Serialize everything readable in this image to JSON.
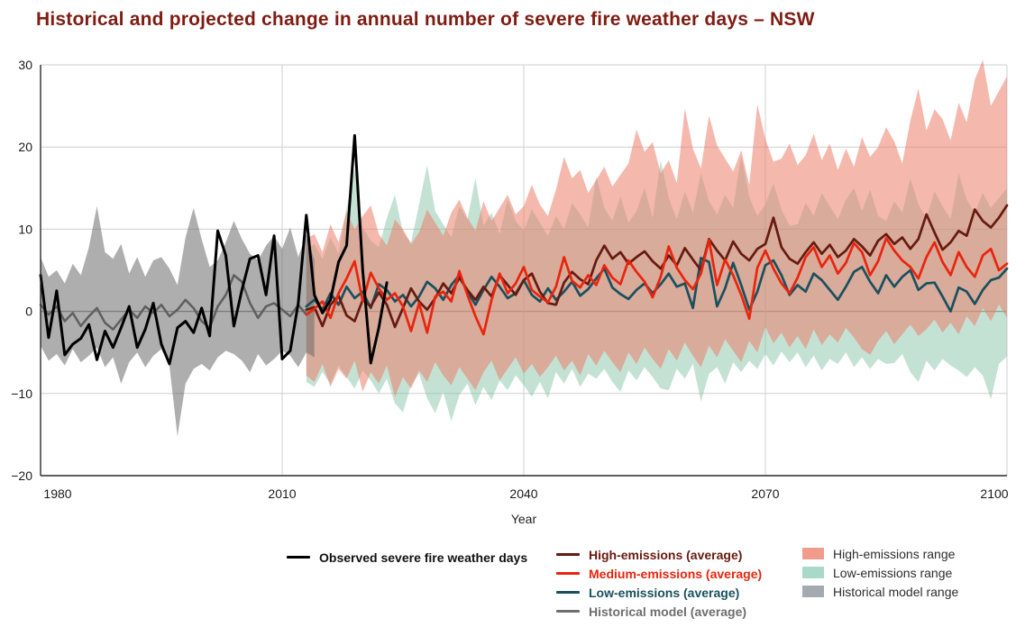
{
  "title": "Historical and projected change in annual number of severe fire weather days – NSW",
  "legend": {
    "observed": {
      "label": "Observed severe fire weather days",
      "color": "#000000"
    },
    "averages": [
      {
        "label": "High-emissions (average)",
        "color": "#661a10"
      },
      {
        "label": "Medium-emissions (average)",
        "color": "#e8250e"
      },
      {
        "label": "Low-emissions (average)",
        "color": "#1a505e"
      },
      {
        "label": "Historical model (average)",
        "color": "#6e6e6e"
      }
    ],
    "ranges": [
      {
        "label": "High-emissions range",
        "color": "#ef9c8d"
      },
      {
        "label": "Low-emissions range",
        "color": "#a9d9c9"
      },
      {
        "label": "Historical model range",
        "color": "#a4abb0"
      }
    ]
  },
  "chart_data": {
    "type": "line",
    "title": "Historical and projected change in annual number of severe fire weather days – NSW",
    "xlabel": "Year",
    "ylabel": "",
    "xlim": [
      1980,
      2100
    ],
    "ylim": [
      -20,
      30
    ],
    "x_ticks": [
      1980,
      2010,
      2040,
      2070,
      2100
    ],
    "y_ticks": [
      -20,
      -10,
      0,
      10,
      20,
      30
    ],
    "grid": true,
    "legend_position": "bottom",
    "series": [
      {
        "name": "Low-emissions range",
        "kind": "band",
        "start_year": 2013,
        "color": "#7dbea0",
        "opacity": 0.45,
        "upper": [
          7.6,
          8.2,
          6.4,
          9.0,
          7.0,
          12.6,
          17.4,
          10.2,
          8.6,
          7.8,
          11.4,
          14.2,
          9.6,
          8.4,
          13.0,
          17.8,
          12.2,
          10.6,
          9.0,
          12.8,
          11.2,
          16.2,
          10.4,
          12.0,
          9.4,
          13.6,
          11.0,
          9.8,
          12.4,
          10.8,
          9.2,
          11.6,
          10.0,
          13.2,
          11.8,
          10.2,
          16.4,
          12.6,
          11.0,
          14.0,
          10.8,
          12.2,
          15.0,
          11.4,
          18.4,
          13.8,
          11.2,
          14.6,
          12.0,
          16.8,
          13.4,
          11.8,
          14.2,
          12.6,
          19.0,
          13.9,
          11.6,
          13.0,
          15.6,
          12.4,
          10.4,
          10.6,
          13.2,
          11.6,
          14.4,
          12.8,
          11.2,
          13.6,
          15.0,
          12.2,
          14.8,
          11.6,
          11.0,
          13.4,
          12.0,
          16.2,
          13.0,
          11.4,
          14.6,
          12.8,
          11.2,
          16.8,
          13.6,
          12.0,
          14.4,
          12.6,
          13.8,
          15.0
        ],
        "lower": [
          -8.6,
          -9.2,
          -7.4,
          -8.8,
          -6.6,
          -8.0,
          -9.4,
          -7.2,
          -8.4,
          -10.0,
          -8.2,
          -11.2,
          -12.3,
          -9.0,
          -7.6,
          -10.6,
          -12.4,
          -9.8,
          -13.4,
          -10.2,
          -8.8,
          -11.4,
          -9.2,
          -10.8,
          -8.4,
          -9.6,
          -7.8,
          -9.0,
          -10.4,
          -8.6,
          -10.6,
          -7.4,
          -8.8,
          -7.0,
          -9.2,
          -7.6,
          -8.2,
          -7.0,
          -8.6,
          -9.8,
          -7.2,
          -8.4,
          -6.8,
          -8.0,
          -9.4,
          -9.6,
          -7.0,
          -8.2,
          -6.4,
          -11.0,
          -7.6,
          -6.8,
          -8.8,
          -6.2,
          -7.4,
          -6.0,
          -7.0,
          -5.2,
          -6.6,
          -4.9,
          -6.2,
          -5.0,
          -6.8,
          -5.4,
          -7.2,
          -5.8,
          -6.4,
          -5.0,
          -6.8,
          -5.6,
          -7.0,
          -5.8,
          -6.4,
          -6.3,
          -5.2,
          -7.4,
          -8.6,
          -6.0,
          -7.2,
          -5.8,
          -6.6,
          -7.2,
          -8.0,
          -6.8,
          -7.8,
          -10.7,
          -6.4,
          -5.5
        ]
      },
      {
        "name": "High-emissions range",
        "kind": "band",
        "start_year": 2013,
        "color": "#eb7d69",
        "opacity": 0.55,
        "upper": [
          8.8,
          9.4,
          7.2,
          10.6,
          8.4,
          12.2,
          10.0,
          11.6,
          12.9,
          9.4,
          8.0,
          11.2,
          10.0,
          8.2,
          9.6,
          12.4,
          10.8,
          9.2,
          12.0,
          13.6,
          11.4,
          9.8,
          13.4,
          11.0,
          12.6,
          14.2,
          11.8,
          12.8,
          15.4,
          13.0,
          11.6,
          14.8,
          18.8,
          16.2,
          17.2,
          14.4,
          16.0,
          17.6,
          15.2,
          16.6,
          18.0,
          22.1,
          19.4,
          20.6,
          16.8,
          18.4,
          15.6,
          24.7,
          19.8,
          17.4,
          23.8,
          20.2,
          18.6,
          17.0,
          19.6,
          15.4,
          25.2,
          21.0,
          18.2,
          18.6,
          20.4,
          17.8,
          19.0,
          21.6,
          18.4,
          20.4,
          17.2,
          19.8,
          17.6,
          21.2,
          18.8,
          20.0,
          22.4,
          20.7,
          18.0,
          23.2,
          27.1,
          22.0,
          24.6,
          23.4,
          20.8,
          25.4,
          23.0,
          28.2,
          30.6,
          25.0,
          26.8,
          28.6
        ],
        "lower": [
          -7.8,
          -8.6,
          -6.4,
          -9.2,
          -7.0,
          -8.2,
          -6.0,
          -9.8,
          -7.4,
          -8.8,
          -6.6,
          -10.4,
          -8.0,
          -9.4,
          -7.2,
          -8.6,
          -6.2,
          -7.8,
          -9.0,
          -6.8,
          -8.2,
          -9.6,
          -7.4,
          -6.0,
          -8.4,
          -7.0,
          -5.6,
          -7.6,
          -6.4,
          -8.0,
          -6.8,
          -5.4,
          -7.2,
          -6.0,
          -7.8,
          -5.2,
          -6.6,
          -4.8,
          -6.2,
          -7.4,
          -5.0,
          -6.4,
          -4.4,
          -5.8,
          -7.0,
          -4.6,
          -6.0,
          -3.8,
          -5.4,
          -6.8,
          -4.2,
          -5.6,
          -3.4,
          -4.8,
          -6.2,
          -3.6,
          -5.0,
          -1.9,
          -3.9,
          -2.6,
          -4.4,
          -3.0,
          -4.6,
          -2.2,
          -4.1,
          -2.8,
          -3.8,
          -2.0,
          -3.2,
          -4.6,
          -5.3,
          -3.6,
          -2.4,
          -4.0,
          -2.8,
          -1.6,
          -3.0,
          -2.2,
          -1.0,
          -2.6,
          -1.4,
          -2.8,
          -0.6,
          -1.8,
          0.4,
          -1.2,
          0.8,
          -0.8
        ]
      },
      {
        "name": "Historical model range",
        "kind": "band",
        "start_year": 1980,
        "color": "#6b6b6b",
        "opacity": 0.55,
        "upper": [
          6.6,
          4.2,
          5.0,
          3.4,
          5.8,
          4.4,
          7.8,
          12.8,
          7.2,
          6.4,
          8.2,
          4.6,
          6.6,
          4.2,
          6.2,
          6.6,
          5.2,
          3.2,
          9.0,
          12.6,
          8.8,
          5.4,
          6.2,
          8.4,
          11.0,
          8.8,
          7.0,
          6.2,
          8.0,
          9.2,
          7.6,
          10.2,
          6.6,
          9.4,
          6.2
        ],
        "lower": [
          -4.2,
          -6.0,
          -5.2,
          -6.6,
          -4.6,
          -6.2,
          -5.4,
          -4.4,
          -6.8,
          -5.6,
          -8.8,
          -6.2,
          -5.0,
          -6.8,
          -5.4,
          -4.6,
          -6.6,
          -15.2,
          -8.8,
          -7.0,
          -6.4,
          -7.2,
          -5.6,
          -4.8,
          -5.2,
          -6.0,
          -7.4,
          -5.2,
          -6.6,
          -5.8,
          -4.8,
          -5.4,
          -6.8,
          -5.0,
          -5.6
        ]
      },
      {
        "name": "Historical model (average)",
        "kind": "line",
        "start_year": 1980,
        "color": "#5f5f5f",
        "width": 2.5,
        "values": [
          0.8,
          -0.4,
          0.6,
          -1.2,
          -0.2,
          -1.8,
          -0.6,
          0.4,
          -1.4,
          -2.2,
          -1.0,
          0.2,
          -0.8,
          0.6,
          -0.2,
          0.8,
          -0.6,
          0.2,
          1.4,
          0.4,
          -1.2,
          -2.0,
          0.6,
          2.0,
          4.4,
          3.6,
          1.0,
          -0.8,
          0.6,
          1.0,
          0.2,
          -0.6,
          0.8,
          -0.4,
          0.3
        ]
      },
      {
        "name": "Low-emissions (average)",
        "kind": "line",
        "start_year": 2013,
        "color": "#1a505e",
        "width": 2.7,
        "values": [
          0.6,
          1.4,
          0.2,
          2.2,
          0.8,
          3.0,
          1.6,
          2.4,
          0.4,
          3.3,
          2.6,
          1.2,
          2.0,
          0.6,
          1.8,
          3.6,
          2.8,
          1.4,
          3.2,
          4.4,
          2.4,
          0.8,
          2.6,
          4.2,
          3.0,
          1.6,
          2.2,
          3.8,
          2.0,
          1.2,
          2.8,
          1.4,
          2.4,
          3.6,
          1.9,
          2.7,
          4.0,
          5.2,
          2.9,
          2.1,
          1.5,
          2.6,
          3.4,
          2.2,
          3.3,
          4.6,
          3.0,
          3.4,
          0.4,
          6.5,
          6.0,
          0.6,
          2.8,
          5.9,
          3.2,
          0.2,
          2.4,
          5.6,
          6.2,
          4.4,
          2.0,
          3.2,
          2.4,
          4.6,
          3.8,
          2.6,
          1.4,
          3.0,
          4.8,
          5.4,
          3.6,
          2.2,
          4.4,
          3.0,
          4.2,
          5.0,
          2.6,
          3.4,
          3.5,
          1.8,
          0.0,
          2.9,
          2.4,
          0.9,
          2.6,
          3.8,
          4.1,
          5.2
        ]
      },
      {
        "name": "High-emissions (average)",
        "kind": "line",
        "start_year": 2013,
        "color": "#661a10",
        "width": 2.7,
        "values": [
          0.2,
          0.5,
          -1.8,
          0.8,
          1.9,
          -0.5,
          -1.2,
          1.4,
          0.6,
          2.3,
          0.8,
          -1.9,
          0.4,
          2.8,
          1.2,
          0.2,
          1.6,
          3.4,
          2.2,
          4.1,
          2.6,
          1.4,
          3.0,
          1.8,
          4.4,
          3.2,
          2.0,
          3.8,
          4.6,
          2.4,
          1.0,
          0.8,
          3.5,
          4.8,
          3.9,
          3.3,
          6.2,
          8.0,
          6.4,
          7.2,
          5.8,
          6.6,
          7.3,
          6.1,
          5.2,
          6.8,
          5.6,
          7.7,
          6.3,
          5.0,
          8.8,
          7.4,
          6.2,
          8.5,
          7.0,
          6.2,
          7.6,
          8.2,
          11.4,
          7.8,
          6.4,
          5.8,
          7.2,
          8.4,
          7.0,
          8.1,
          6.6,
          7.4,
          8.8,
          7.9,
          6.8,
          8.6,
          9.4,
          8.2,
          9.0,
          7.6,
          8.8,
          11.8,
          9.6,
          7.5,
          8.4,
          9.8,
          9.2,
          12.4,
          11.0,
          10.2,
          11.4,
          12.9
        ]
      },
      {
        "name": "Medium-emissions (average)",
        "kind": "line",
        "start_year": 2013,
        "color": "#e8250e",
        "width": 2.7,
        "values": [
          -0.4,
          0.3,
          1.2,
          -0.8,
          2.2,
          4.0,
          6.1,
          1.2,
          4.7,
          2.8,
          1.4,
          2.2,
          0.6,
          -2.4,
          1.0,
          -2.6,
          1.8,
          2.4,
          1.2,
          4.9,
          2.0,
          -0.6,
          -2.8,
          1.4,
          4.6,
          2.2,
          3.4,
          5.4,
          2.6,
          1.8,
          1.1,
          3.0,
          6.6,
          3.7,
          2.9,
          4.4,
          3.2,
          5.6,
          4.1,
          3.3,
          6.2,
          4.8,
          3.6,
          1.7,
          4.2,
          7.9,
          5.3,
          3.8,
          2.7,
          4.6,
          8.7,
          3.2,
          6.3,
          4.4,
          2.0,
          -0.9,
          5.3,
          7.4,
          5.2,
          3.4,
          2.2,
          4.1,
          6.6,
          7.8,
          5.4,
          6.8,
          4.6,
          5.9,
          8.3,
          7.2,
          4.4,
          6.1,
          8.9,
          7.4,
          6.2,
          5.4,
          4.0,
          6.6,
          8.4,
          6.0,
          4.4,
          7.2,
          5.4,
          4.2,
          6.8,
          7.6,
          5.0,
          5.8
        ]
      },
      {
        "name": "Observed severe fire weather days",
        "kind": "line",
        "start_year": 1980,
        "color": "#000000",
        "width": 3,
        "values": [
          4.4,
          -3.2,
          2.5,
          -5.3,
          -4.0,
          -3.3,
          -1.6,
          -5.9,
          -2.4,
          -4.4,
          -2.0,
          0.6,
          -4.4,
          -2.2,
          1.0,
          -4.0,
          -6.4,
          -2.0,
          -1.2,
          -2.6,
          0.4,
          -3.0,
          9.8,
          6.8,
          -1.8,
          2.6,
          6.4,
          6.8,
          2.0,
          9.2,
          -5.8,
          -4.8,
          1.0,
          11.7,
          2.0,
          -0.2,
          1.4,
          6.0,
          8.0,
          21.4,
          5.0,
          -6.3,
          -2.0,
          3.5
        ]
      }
    ]
  }
}
